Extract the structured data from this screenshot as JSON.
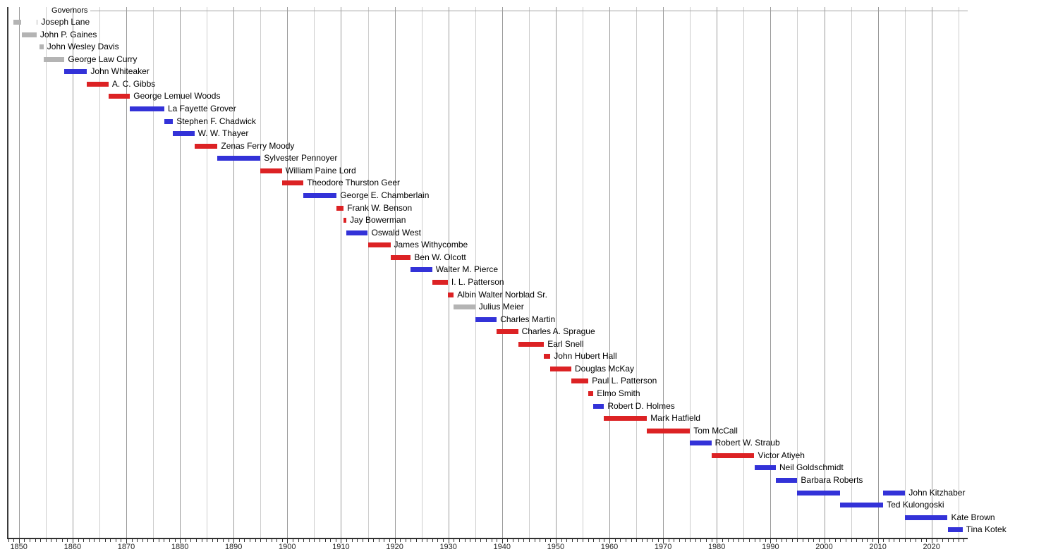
{
  "chart_data": {
    "type": "gantt",
    "title": "Governors",
    "xlabel": "",
    "ylabel": "",
    "grid": true,
    "legend": "none",
    "x_axis": {
      "min": 1847.8,
      "max": 2026.7,
      "major_tick_years": [
        1850,
        1860,
        1870,
        1880,
        1890,
        1900,
        1910,
        1920,
        1930,
        1940,
        1950,
        1960,
        1970,
        1980,
        1990,
        2000,
        2010,
        2020
      ],
      "gridline_interval_years": 5,
      "minor_tick_interval_years": 1
    },
    "bar_colors": {
      "gray": "#b4b4b4",
      "blue": "#3332d8",
      "red": "#dc2224"
    },
    "rows": [
      {
        "name": "Joseph Lane",
        "color": "gray",
        "terms": [
          [
            1849.0,
            1850.5
          ],
          [
            1853.3,
            1853.5
          ]
        ]
      },
      {
        "name": "John P. Gaines",
        "color": "gray",
        "terms": [
          [
            1850.5,
            1853.3
          ]
        ]
      },
      {
        "name": "John Wesley Davis",
        "color": "gray",
        "terms": [
          [
            1853.8,
            1854.6
          ]
        ]
      },
      {
        "name": "George Law Curry",
        "color": "gray",
        "terms": [
          [
            1854.6,
            1858.5
          ]
        ]
      },
      {
        "name": "John Whiteaker",
        "color": "blue",
        "terms": [
          [
            1858.5,
            1862.7
          ]
        ]
      },
      {
        "name": "A. C. Gibbs",
        "color": "red",
        "terms": [
          [
            1862.7,
            1866.7
          ]
        ]
      },
      {
        "name": "George Lemuel Woods",
        "color": "red",
        "terms": [
          [
            1866.7,
            1870.7
          ]
        ]
      },
      {
        "name": "La Fayette Grover",
        "color": "blue",
        "terms": [
          [
            1870.7,
            1877.1
          ]
        ]
      },
      {
        "name": "Stephen F. Chadwick",
        "color": "blue",
        "terms": [
          [
            1877.1,
            1878.7
          ]
        ]
      },
      {
        "name": "W. W. Thayer",
        "color": "blue",
        "terms": [
          [
            1878.7,
            1882.7
          ]
        ]
      },
      {
        "name": "Zenas Ferry Moody",
        "color": "red",
        "terms": [
          [
            1882.7,
            1887.0
          ]
        ]
      },
      {
        "name": "Sylvester Pennoyer",
        "color": "blue",
        "terms": [
          [
            1887.0,
            1895.0
          ]
        ]
      },
      {
        "name": "William Paine Lord",
        "color": "red",
        "terms": [
          [
            1895.0,
            1899.0
          ]
        ]
      },
      {
        "name": "Theodore Thurston Geer",
        "color": "red",
        "terms": [
          [
            1899.0,
            1903.0
          ]
        ]
      },
      {
        "name": "George E. Chamberlain",
        "color": "blue",
        "terms": [
          [
            1903.0,
            1909.2
          ]
        ]
      },
      {
        "name": "Frank W. Benson",
        "color": "red",
        "terms": [
          [
            1909.2,
            1910.5
          ]
        ]
      },
      {
        "name": "Jay Bowerman",
        "color": "red",
        "terms": [
          [
            1910.5,
            1911.0
          ]
        ]
      },
      {
        "name": "Oswald West",
        "color": "blue",
        "terms": [
          [
            1911.0,
            1915.0
          ]
        ]
      },
      {
        "name": "James Withycombe",
        "color": "red",
        "terms": [
          [
            1915.0,
            1919.2
          ]
        ]
      },
      {
        "name": "Ben W. Olcott",
        "color": "red",
        "terms": [
          [
            1919.2,
            1923.0
          ]
        ]
      },
      {
        "name": "Walter M. Pierce",
        "color": "blue",
        "terms": [
          [
            1923.0,
            1927.0
          ]
        ]
      },
      {
        "name": "I. L. Patterson",
        "color": "red",
        "terms": [
          [
            1927.0,
            1929.9
          ]
        ]
      },
      {
        "name": "Albin Walter Norblad Sr.",
        "color": "red",
        "terms": [
          [
            1929.9,
            1931.0
          ]
        ]
      },
      {
        "name": "Julius Meier",
        "color": "gray",
        "terms": [
          [
            1931.0,
            1935.0
          ]
        ]
      },
      {
        "name": "Charles Martin",
        "color": "blue",
        "terms": [
          [
            1935.0,
            1939.0
          ]
        ]
      },
      {
        "name": "Charles A. Sprague",
        "color": "red",
        "terms": [
          [
            1939.0,
            1943.0
          ]
        ]
      },
      {
        "name": "Earl Snell",
        "color": "red",
        "terms": [
          [
            1943.0,
            1947.8
          ]
        ]
      },
      {
        "name": "John Hubert Hall",
        "color": "red",
        "terms": [
          [
            1947.8,
            1949.0
          ]
        ]
      },
      {
        "name": "Douglas McKay",
        "color": "red",
        "terms": [
          [
            1949.0,
            1952.9
          ]
        ]
      },
      {
        "name": "Paul L. Patterson",
        "color": "red",
        "terms": [
          [
            1952.9,
            1956.1
          ]
        ]
      },
      {
        "name": "Elmo Smith",
        "color": "red",
        "terms": [
          [
            1956.1,
            1957.0
          ]
        ]
      },
      {
        "name": "Robert D. Holmes",
        "color": "blue",
        "terms": [
          [
            1957.0,
            1959.0
          ]
        ]
      },
      {
        "name": "Mark Hatfield",
        "color": "red",
        "terms": [
          [
            1959.0,
            1967.0
          ]
        ]
      },
      {
        "name": "Tom McCall",
        "color": "red",
        "terms": [
          [
            1967.0,
            1975.0
          ]
        ]
      },
      {
        "name": "Robert W. Straub",
        "color": "blue",
        "terms": [
          [
            1975.0,
            1979.0
          ]
        ]
      },
      {
        "name": "Victor Atiyeh",
        "color": "red",
        "terms": [
          [
            1979.0,
            1987.0
          ]
        ]
      },
      {
        "name": "Neil Goldschmidt",
        "color": "blue",
        "terms": [
          [
            1987.0,
            1991.0
          ]
        ]
      },
      {
        "name": "Barbara Roberts",
        "color": "blue",
        "terms": [
          [
            1991.0,
            1995.0
          ]
        ]
      },
      {
        "name": "John Kitzhaber",
        "color": "blue",
        "terms": [
          [
            1995.0,
            2003.0
          ],
          [
            2011.0,
            2015.1
          ]
        ]
      },
      {
        "name": "Ted Kulongoski",
        "color": "blue",
        "terms": [
          [
            2003.0,
            2011.0
          ]
        ]
      },
      {
        "name": "Kate Brown",
        "color": "blue",
        "terms": [
          [
            2015.1,
            2023.0
          ]
        ]
      },
      {
        "name": "Tina Kotek",
        "color": "blue",
        "terms": [
          [
            2023.0,
            2025.8
          ]
        ]
      }
    ]
  }
}
